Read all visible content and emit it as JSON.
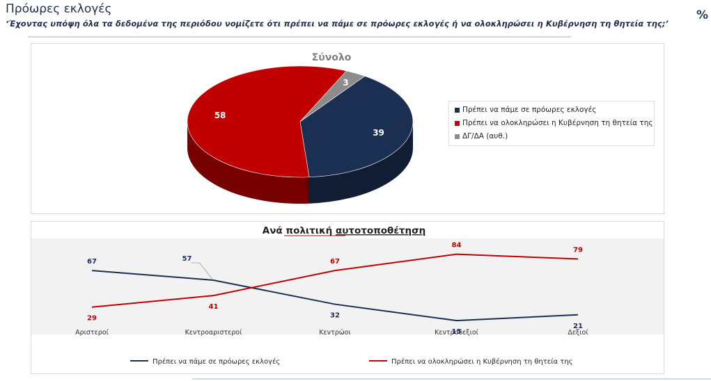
{
  "header": {
    "title": "Πρόωρες εκλογές",
    "subtitle": "‘Έχοντας υπόψη όλα τα δεδομένα της περιόδου νομίζετε ότι πρέπει να πάμε σε πρόωρες εκλογές ή να ολοκληρώσει η Κυβέρνηση τη θητεία της;’",
    "unit_symbol": "%"
  },
  "colors": {
    "navy": "#1b2f52",
    "red": "#c00000",
    "gray": "#8c8c8c"
  },
  "chart_data": [
    {
      "type": "pie",
      "title": "Σύνολο",
      "labels": [
        "Πρέπει να πάμε σε πρόωρες εκλογές",
        "Πρέπει να ολοκληρώσει η Κυβέρνηση τη θητεία της",
        "ΔΓ/ΔΑ (αυθ.)"
      ],
      "values": [
        39,
        58,
        3
      ],
      "data_labels": [
        "39",
        "58",
        "3"
      ],
      "colors": [
        "#1b2f52",
        "#c00000",
        "#8c8c8c"
      ],
      "style": "3d",
      "legend_position": "right"
    },
    {
      "type": "line",
      "title_prefix": "Ανά πολιτική ",
      "title_suffix": "αυτοτοποθέτηση",
      "categories": [
        "Αριστεροί",
        "Κεντροαριστεροί",
        "Κεντρώοι",
        "Κεντροδεξιοί",
        "Δεξιοί"
      ],
      "series": [
        {
          "name": "Πρέπει να πάμε σε πρόωρες εκλογές",
          "values": [
            67,
            57,
            32,
            15,
            21
          ],
          "color": "#1b2f52"
        },
        {
          "name": "Πρέπει να ολοκληρώσει η Κυβέρνηση τη θητεία της",
          "values": [
            29,
            41,
            67,
            84,
            79
          ],
          "color": "#c00000"
        }
      ],
      "ylim": [
        0,
        100
      ],
      "grid": false,
      "legend_position": "bottom"
    }
  ]
}
